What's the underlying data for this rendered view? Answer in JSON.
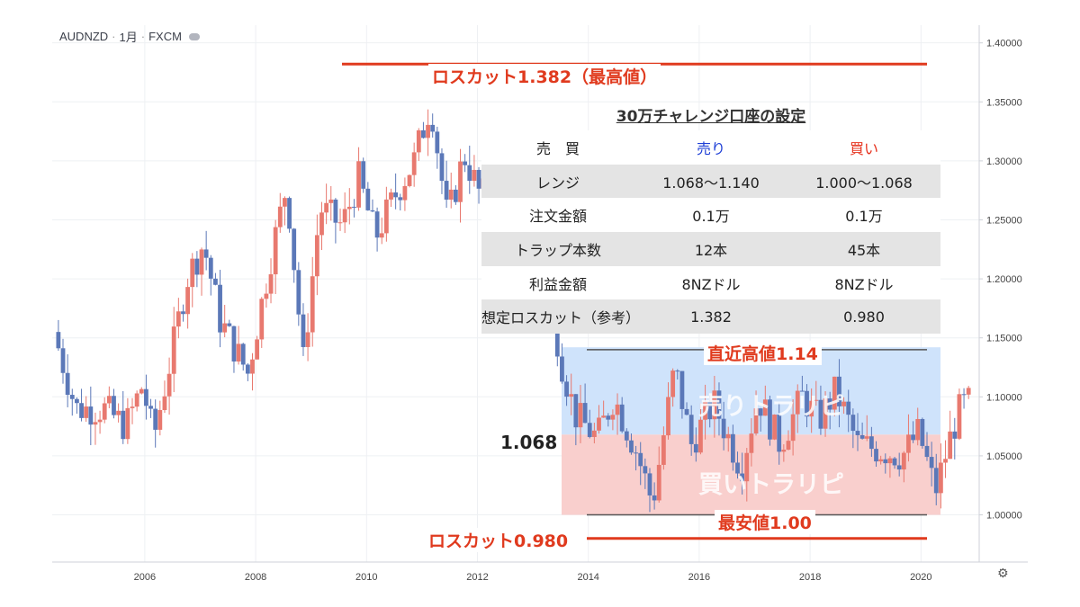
{
  "header": {
    "symbol": "AUDNZD",
    "timeframe": "1月",
    "source": "FXCM",
    "sep": "·"
  },
  "table": {
    "title": "30万チャレンジ口座の設定",
    "header": [
      "売　買",
      "売り",
      "買い"
    ],
    "rows": [
      [
        "レンジ",
        "1.068〜1.140",
        "1.000〜1.068"
      ],
      [
        "注文金額",
        "0.1万",
        "0.1万"
      ],
      [
        "トラップ本数",
        "12本",
        "45本"
      ],
      [
        "利益金額",
        "8NZドル",
        "8NZドル"
      ],
      [
        "想定ロスカット（参考）",
        "1.382",
        "0.980"
      ]
    ]
  },
  "annotations": {
    "losscut_high": "ロスカット1.382（最高値）",
    "losscut_low": "ロスカット0.980",
    "recent_high": "直近高値1.14",
    "lowest": "最安値1.00",
    "mid_level": "1.068",
    "sell_zone": "売りトラリピ",
    "buy_zone": "買いトラリピ"
  },
  "chart_data": {
    "type": "candlestick",
    "title": "",
    "xlabel": "",
    "ylabel": "",
    "ylim": [
      0.96,
      1.415
    ],
    "xlim": [
      2004.33,
      2021.05
    ],
    "y_ticks": [
      "1.00000",
      "1.05000",
      "1.10000",
      "1.15000",
      "1.20000",
      "1.25000",
      "1.30000",
      "1.35000",
      "1.40000"
    ],
    "x_ticks": [
      "2006",
      "2008",
      "2010",
      "2012",
      "2014",
      "2016",
      "2018",
      "2020"
    ],
    "levels": {
      "losscut_high": 1.382,
      "recent_high": 1.14,
      "mid": 1.068,
      "lowest": 1.0,
      "losscut_low": 0.98
    },
    "zones": [
      {
        "from": 1.068,
        "to": 1.142,
        "color": "#cfe3fb"
      },
      {
        "from": 1.0,
        "to": 1.068,
        "color": "#f9cfcd"
      }
    ],
    "up_color": "#e8796f",
    "down_color": "#5b78b8",
    "anchors": [
      [
        2004.4,
        1.155
      ],
      [
        2004.8,
        1.09
      ],
      [
        2005.3,
        1.09
      ],
      [
        2005.7,
        1.075
      ],
      [
        2006.0,
        1.11
      ],
      [
        2006.2,
        1.065
      ],
      [
        2006.5,
        1.13
      ],
      [
        2006.8,
        1.2
      ],
      [
        2007.1,
        1.23
      ],
      [
        2007.4,
        1.165
      ],
      [
        2007.9,
        1.12
      ],
      [
        2008.3,
        1.215
      ],
      [
        2008.6,
        1.28
      ],
      [
        2008.9,
        1.13
      ],
      [
        2009.2,
        1.26
      ],
      [
        2009.6,
        1.245
      ],
      [
        2009.9,
        1.285
      ],
      [
        2010.2,
        1.235
      ],
      [
        2010.6,
        1.275
      ],
      [
        2010.9,
        1.3
      ],
      [
        2011.2,
        1.35
      ],
      [
        2011.5,
        1.25
      ],
      [
        2011.8,
        1.305
      ],
      [
        2012.1,
        1.27
      ],
      [
        2012.5,
        1.28
      ],
      [
        2013.0,
        1.275
      ],
      [
        2013.3,
        1.25
      ],
      [
        2013.5,
        1.14
      ],
      [
        2013.8,
        1.085
      ],
      [
        2014.2,
        1.065
      ],
      [
        2014.5,
        1.1
      ],
      [
        2014.9,
        1.055
      ],
      [
        2015.2,
        1.01
      ],
      [
        2015.6,
        1.125
      ],
      [
        2015.9,
        1.06
      ],
      [
        2016.3,
        1.095
      ],
      [
        2016.8,
        1.04
      ],
      [
        2017.1,
        1.1
      ],
      [
        2017.5,
        1.06
      ],
      [
        2017.9,
        1.1
      ],
      [
        2018.2,
        1.08
      ],
      [
        2018.5,
        1.105
      ],
      [
        2018.9,
        1.06
      ],
      [
        2019.3,
        1.055
      ],
      [
        2019.7,
        1.05
      ],
      [
        2020.0,
        1.07
      ],
      [
        2020.3,
        1.02
      ],
      [
        2020.6,
        1.07
      ],
      [
        2020.75,
        1.09
      ],
      [
        2020.85,
        1.095
      ]
    ]
  }
}
